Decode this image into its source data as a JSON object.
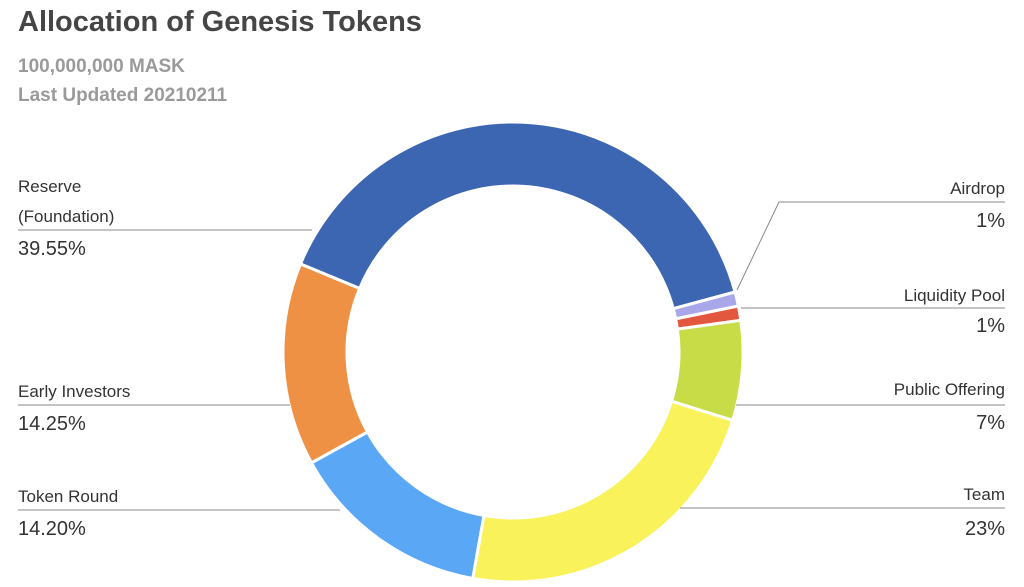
{
  "chart_data": {
    "type": "pie",
    "title": "Allocation of Genesis Tokens",
    "subtitle": [
      "100,000,000 MASK",
      "Last Updated 20210211"
    ],
    "categories": [
      "Reserve (Foundation)",
      "Airdrop",
      "Liquidity Pool",
      "Public Offering",
      "Team",
      "Token Round",
      "Early Investors"
    ],
    "values": [
      39.55,
      1,
      1,
      7,
      23,
      14.2,
      14.25
    ],
    "value_labels": [
      "39.55%",
      "1%",
      "1%",
      "7%",
      "23%",
      "14.20%",
      "14.25%"
    ],
    "colors": [
      "#3d66b2",
      "#aaa6ea",
      "#e4573f",
      "#c7dc46",
      "#f9f25b",
      "#5aa8f5",
      "#ef9144"
    ],
    "donut": true
  }
}
